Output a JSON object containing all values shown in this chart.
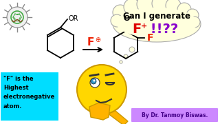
{
  "bg_color": "#ffffff",
  "thought_bubble_color": "#ffffdd",
  "thought_bubble_text_line1": "Can I generate",
  "thought_bubble_f_color": "#dd0000",
  "thought_bubble_rest_color": "#8800cc",
  "cyan_box_text": "\"F\" is the\nHighest\nelectronegative\natom.",
  "cyan_box_color": "#00ddff",
  "byline_text": "By Dr. Tanmoy Biswas.",
  "byline_bg_color": "#cc88ff",
  "byline_color": "#440088",
  "reagent_f_color": "#ee2200",
  "product_f_color": "#ee2200",
  "emoji_face_color": "#FFD700",
  "emoji_face_edge": "#CC9900",
  "emoji_arm_color": "#FFB300",
  "virus_bg": "#f0f0f0",
  "virus_edge": "#888888"
}
